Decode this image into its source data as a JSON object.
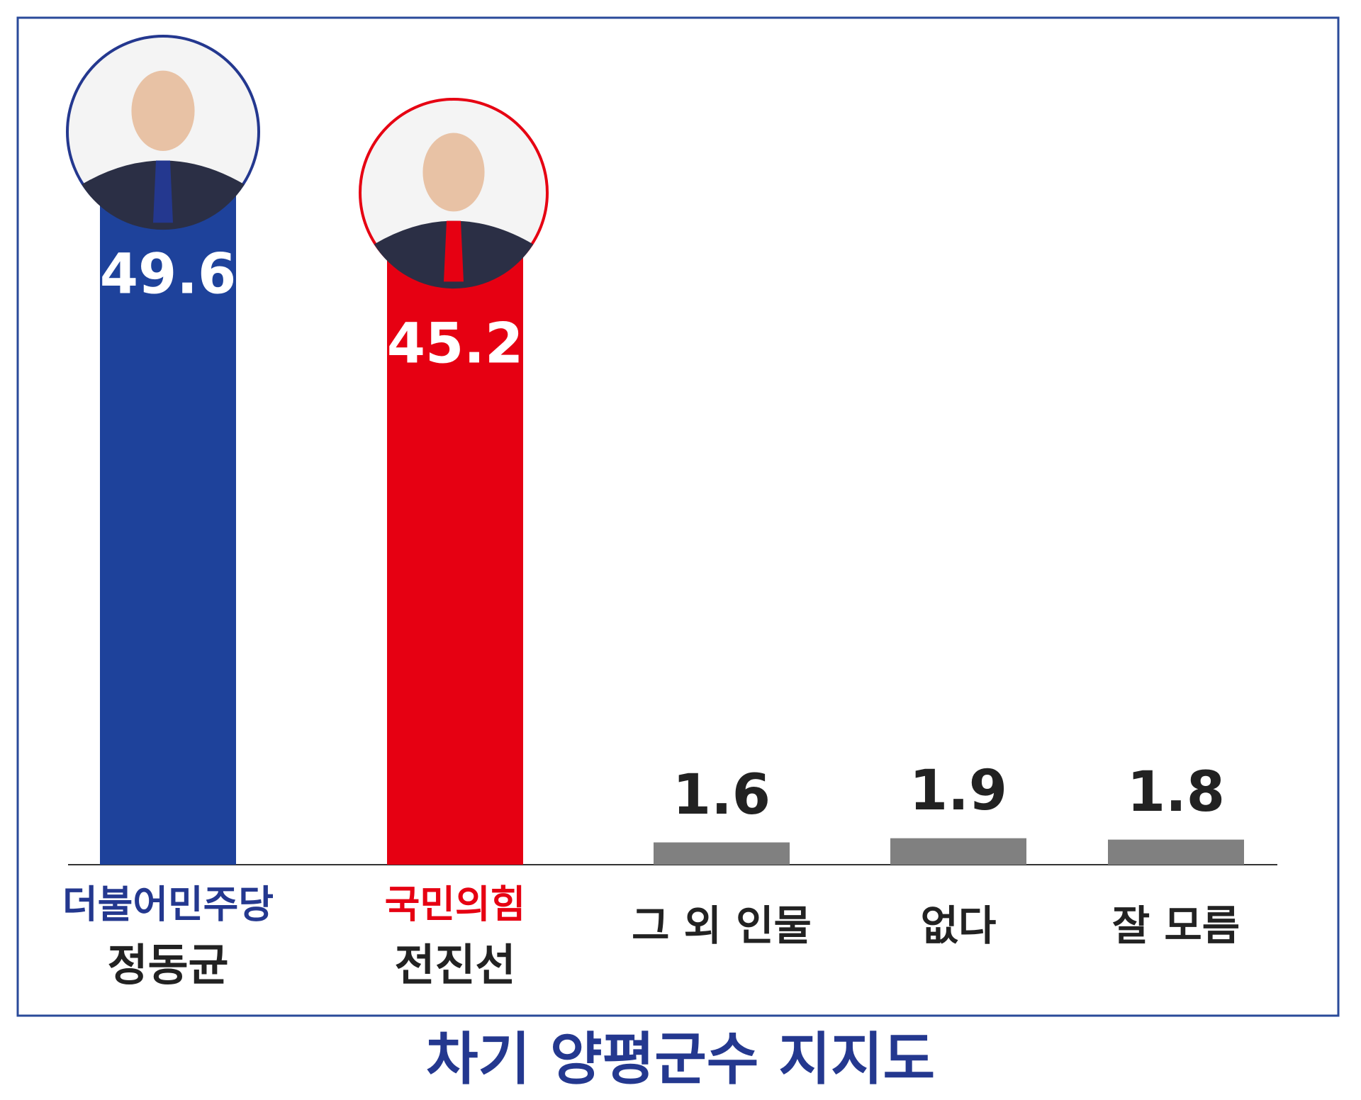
{
  "chart_data": {
    "type": "bar",
    "title": "차기 양평군수 지지도",
    "categories": [
      "정동균",
      "전진선",
      "그 외 인물",
      "없다",
      "잘 모름"
    ],
    "parties": [
      {
        "name": "더불어민주당",
        "color": "#24388f"
      },
      {
        "name": "국민의힘",
        "color": "#e60012"
      }
    ],
    "values": [
      49.6,
      45.2,
      1.6,
      1.9,
      1.8
    ],
    "colors": [
      "#1e429b",
      "#e60012",
      "#808080",
      "#808080",
      "#808080"
    ],
    "ylim": [
      0,
      55
    ]
  }
}
